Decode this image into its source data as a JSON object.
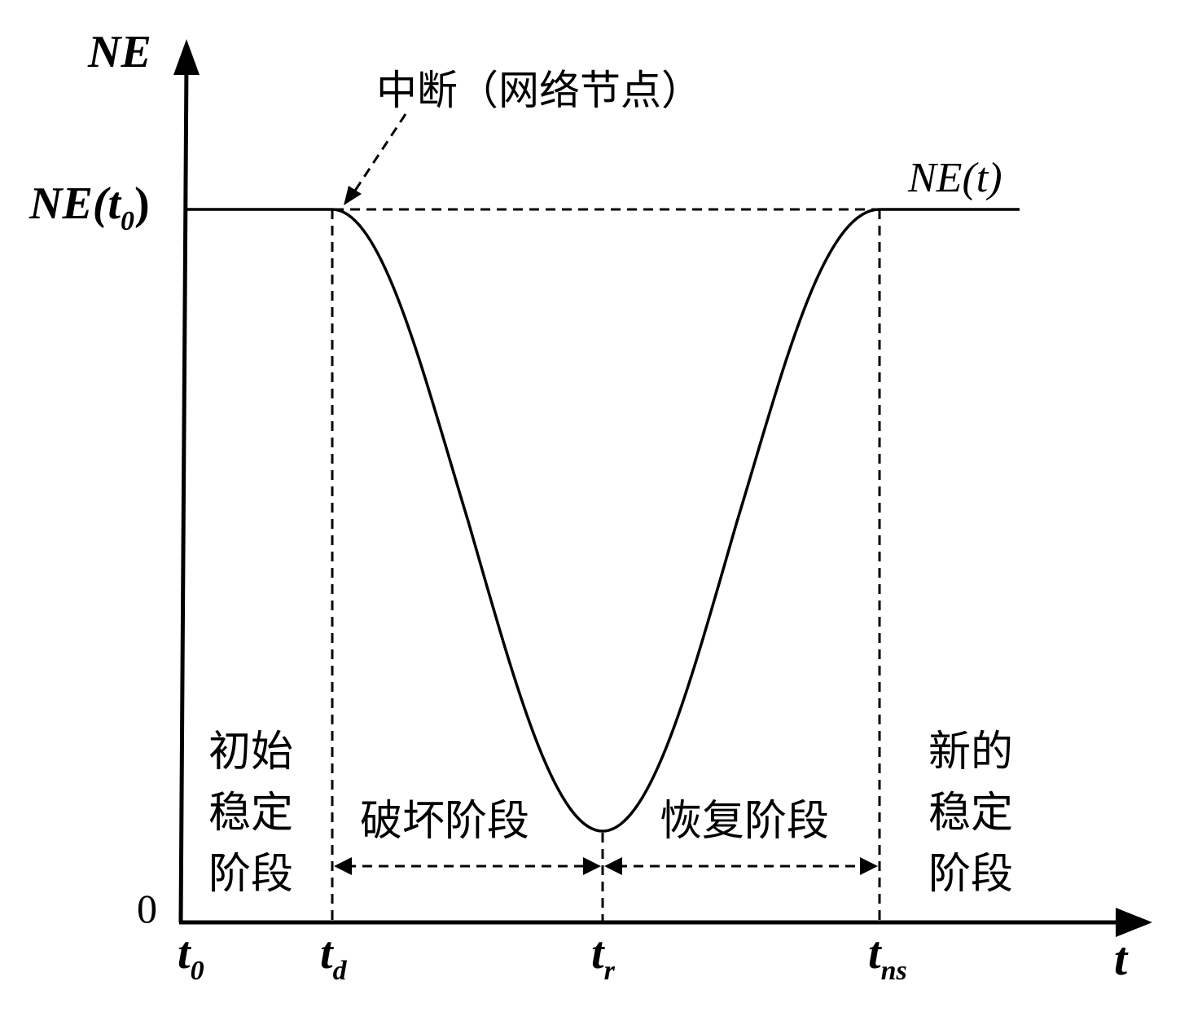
{
  "axes": {
    "y_label": "NE",
    "x_label": "t",
    "y_zero": "0",
    "y_ref": {
      "main": "NE(",
      "sub_var": "t",
      "sub": "0",
      "close": ")"
    }
  },
  "curve_label": {
    "main": "NE(",
    "var": "t",
    "close": ")"
  },
  "annotation": "中断（网络节点）",
  "x_ticks": [
    {
      "base": "t",
      "sub": "0"
    },
    {
      "base": "t",
      "sub": "d"
    },
    {
      "base": "t",
      "sub": "r"
    },
    {
      "base": "t",
      "sub": "ns"
    }
  ],
  "phases": {
    "initial": [
      "初始",
      "稳定",
      "阶段"
    ],
    "destruction": "破坏阶段",
    "recovery": "恢复阶段",
    "new": [
      "新的",
      "稳定",
      "阶段"
    ]
  }
}
